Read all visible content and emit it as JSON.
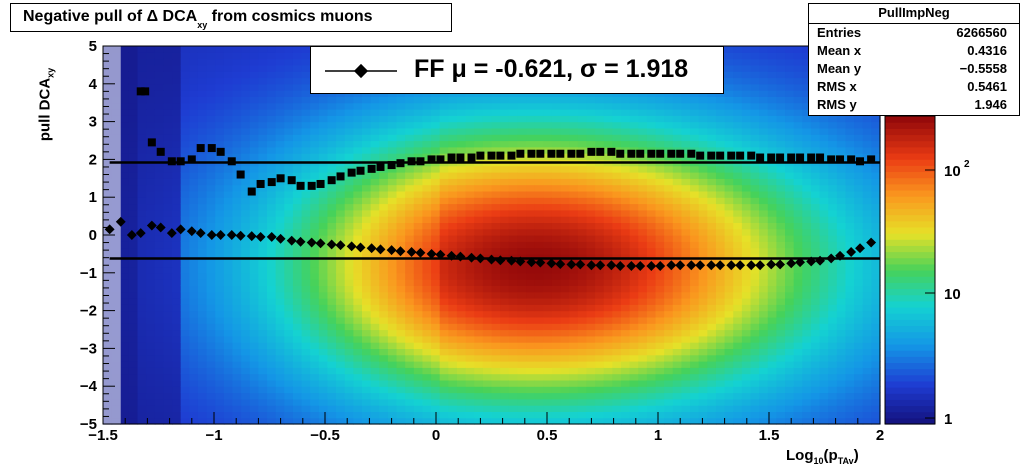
{
  "title": {
    "main": "Negative pull of Δ DCA",
    "sub": "xy",
    "tail": " from cosmics muons"
  },
  "stats_box": {
    "name": "PullImpNeg",
    "rows": [
      {
        "key": "Entries",
        "value": "6266560"
      },
      {
        "key": "Mean x",
        "value": "0.4316"
      },
      {
        "key": "Mean y",
        "value": "−0.5558"
      },
      {
        "key": "RMS x",
        "value": "0.5461"
      },
      {
        "key": "RMS y",
        "value": "1.946"
      }
    ]
  },
  "legend": {
    "label": "FF μ = -0.621, σ =   1.918"
  },
  "axes": {
    "y_label_main": "pull DCA",
    "y_label_sub": "xy",
    "x_label_main": "Log",
    "x_label_sub1": "10",
    "x_label_mid": "(p",
    "x_label_sub2": "TAv",
    "x_label_tail": ")"
  },
  "colors": {
    "markers": "#000000",
    "frame": "#000000"
  },
  "chart_data": {
    "type": "heatmap",
    "xlim": [
      -1.5,
      2
    ],
    "ylim": [
      -5,
      5
    ],
    "z_scale": "log",
    "x_ticks": [
      "−1.5",
      "−1",
      "−0.5",
      "0",
      "0.5",
      "1",
      "1.5",
      "2"
    ],
    "y_ticks": [
      "−5",
      "−4",
      "−3",
      "−2",
      "−1",
      "0",
      "1",
      "2",
      "3",
      "4",
      "5"
    ],
    "z_ticks": [
      "1",
      "10",
      "10^2"
    ],
    "fit_lines": [
      {
        "name": "FF mean",
        "y": -0.621
      },
      {
        "name": "FF sigma",
        "y": 1.918
      }
    ],
    "series": [
      {
        "name": "mean",
        "marker": "diamond",
        "x": [
          -1.47,
          -1.42,
          -1.37,
          -1.33,
          -1.28,
          -1.24,
          -1.19,
          -1.15,
          -1.1,
          -1.06,
          -1.01,
          -0.97,
          -0.92,
          -0.88,
          -0.83,
          -0.79,
          -0.74,
          -0.7,
          -0.65,
          -0.61,
          -0.56,
          -0.52,
          -0.47,
          -0.43,
          -0.38,
          -0.34,
          -0.29,
          -0.25,
          -0.2,
          -0.16,
          -0.11,
          -0.07,
          -0.02,
          0.02,
          0.07,
          0.11,
          0.16,
          0.2,
          0.25,
          0.29,
          0.34,
          0.38,
          0.43,
          0.47,
          0.52,
          0.56,
          0.61,
          0.65,
          0.7,
          0.74,
          0.79,
          0.83,
          0.88,
          0.92,
          0.97,
          1.01,
          1.06,
          1.1,
          1.15,
          1.19,
          1.24,
          1.28,
          1.33,
          1.37,
          1.42,
          1.46,
          1.51,
          1.55,
          1.6,
          1.64,
          1.69,
          1.73,
          1.78,
          1.82,
          1.87,
          1.91,
          1.96
        ],
        "y": [
          0.15,
          0.35,
          0.0,
          0.05,
          0.25,
          0.2,
          0.05,
          0.15,
          0.1,
          0.05,
          0.0,
          0.0,
          0.0,
          -0.02,
          -0.03,
          -0.05,
          -0.05,
          -0.1,
          -0.15,
          -0.18,
          -0.2,
          -0.22,
          -0.25,
          -0.27,
          -0.3,
          -0.33,
          -0.35,
          -0.38,
          -0.4,
          -0.43,
          -0.45,
          -0.47,
          -0.5,
          -0.52,
          -0.55,
          -0.57,
          -0.6,
          -0.62,
          -0.65,
          -0.67,
          -0.68,
          -0.7,
          -0.72,
          -0.73,
          -0.75,
          -0.77,
          -0.78,
          -0.78,
          -0.8,
          -0.8,
          -0.8,
          -0.82,
          -0.82,
          -0.82,
          -0.82,
          -0.82,
          -0.8,
          -0.8,
          -0.8,
          -0.8,
          -0.8,
          -0.8,
          -0.8,
          -0.8,
          -0.8,
          -0.8,
          -0.78,
          -0.78,
          -0.75,
          -0.72,
          -0.7,
          -0.68,
          -0.62,
          -0.55,
          -0.45,
          -0.35,
          -0.2
        ]
      },
      {
        "name": "sigma",
        "marker": "square",
        "x": [
          -1.33,
          -1.31,
          -1.28,
          -1.24,
          -1.19,
          -1.15,
          -1.1,
          -1.06,
          -1.01,
          -0.97,
          -0.92,
          -0.88,
          -0.83,
          -0.79,
          -0.74,
          -0.7,
          -0.65,
          -0.61,
          -0.56,
          -0.52,
          -0.47,
          -0.43,
          -0.38,
          -0.34,
          -0.29,
          -0.25,
          -0.2,
          -0.16,
          -0.11,
          -0.07,
          -0.02,
          0.02,
          0.07,
          0.11,
          0.16,
          0.2,
          0.25,
          0.29,
          0.34,
          0.38,
          0.43,
          0.47,
          0.52,
          0.56,
          0.61,
          0.65,
          0.7,
          0.74,
          0.79,
          0.83,
          0.88,
          0.92,
          0.97,
          1.01,
          1.06,
          1.1,
          1.15,
          1.19,
          1.24,
          1.28,
          1.33,
          1.37,
          1.42,
          1.46,
          1.51,
          1.55,
          1.6,
          1.64,
          1.69,
          1.73,
          1.78,
          1.82,
          1.87,
          1.91,
          1.96
        ],
        "y": [
          3.8,
          3.8,
          2.45,
          2.2,
          1.95,
          1.95,
          2.0,
          2.3,
          2.3,
          2.2,
          1.95,
          1.6,
          1.15,
          1.35,
          1.4,
          1.5,
          1.45,
          1.3,
          1.3,
          1.35,
          1.45,
          1.55,
          1.65,
          1.7,
          1.75,
          1.8,
          1.85,
          1.9,
          1.95,
          1.95,
          2.0,
          2.0,
          2.05,
          2.05,
          2.05,
          2.1,
          2.1,
          2.1,
          2.1,
          2.15,
          2.15,
          2.15,
          2.15,
          2.15,
          2.15,
          2.15,
          2.2,
          2.2,
          2.2,
          2.15,
          2.15,
          2.15,
          2.15,
          2.15,
          2.15,
          2.15,
          2.15,
          2.1,
          2.1,
          2.1,
          2.1,
          2.1,
          2.1,
          2.05,
          2.05,
          2.05,
          2.05,
          2.05,
          2.05,
          2.05,
          2.0,
          2.0,
          2.0,
          1.95,
          2.0
        ]
      }
    ]
  }
}
